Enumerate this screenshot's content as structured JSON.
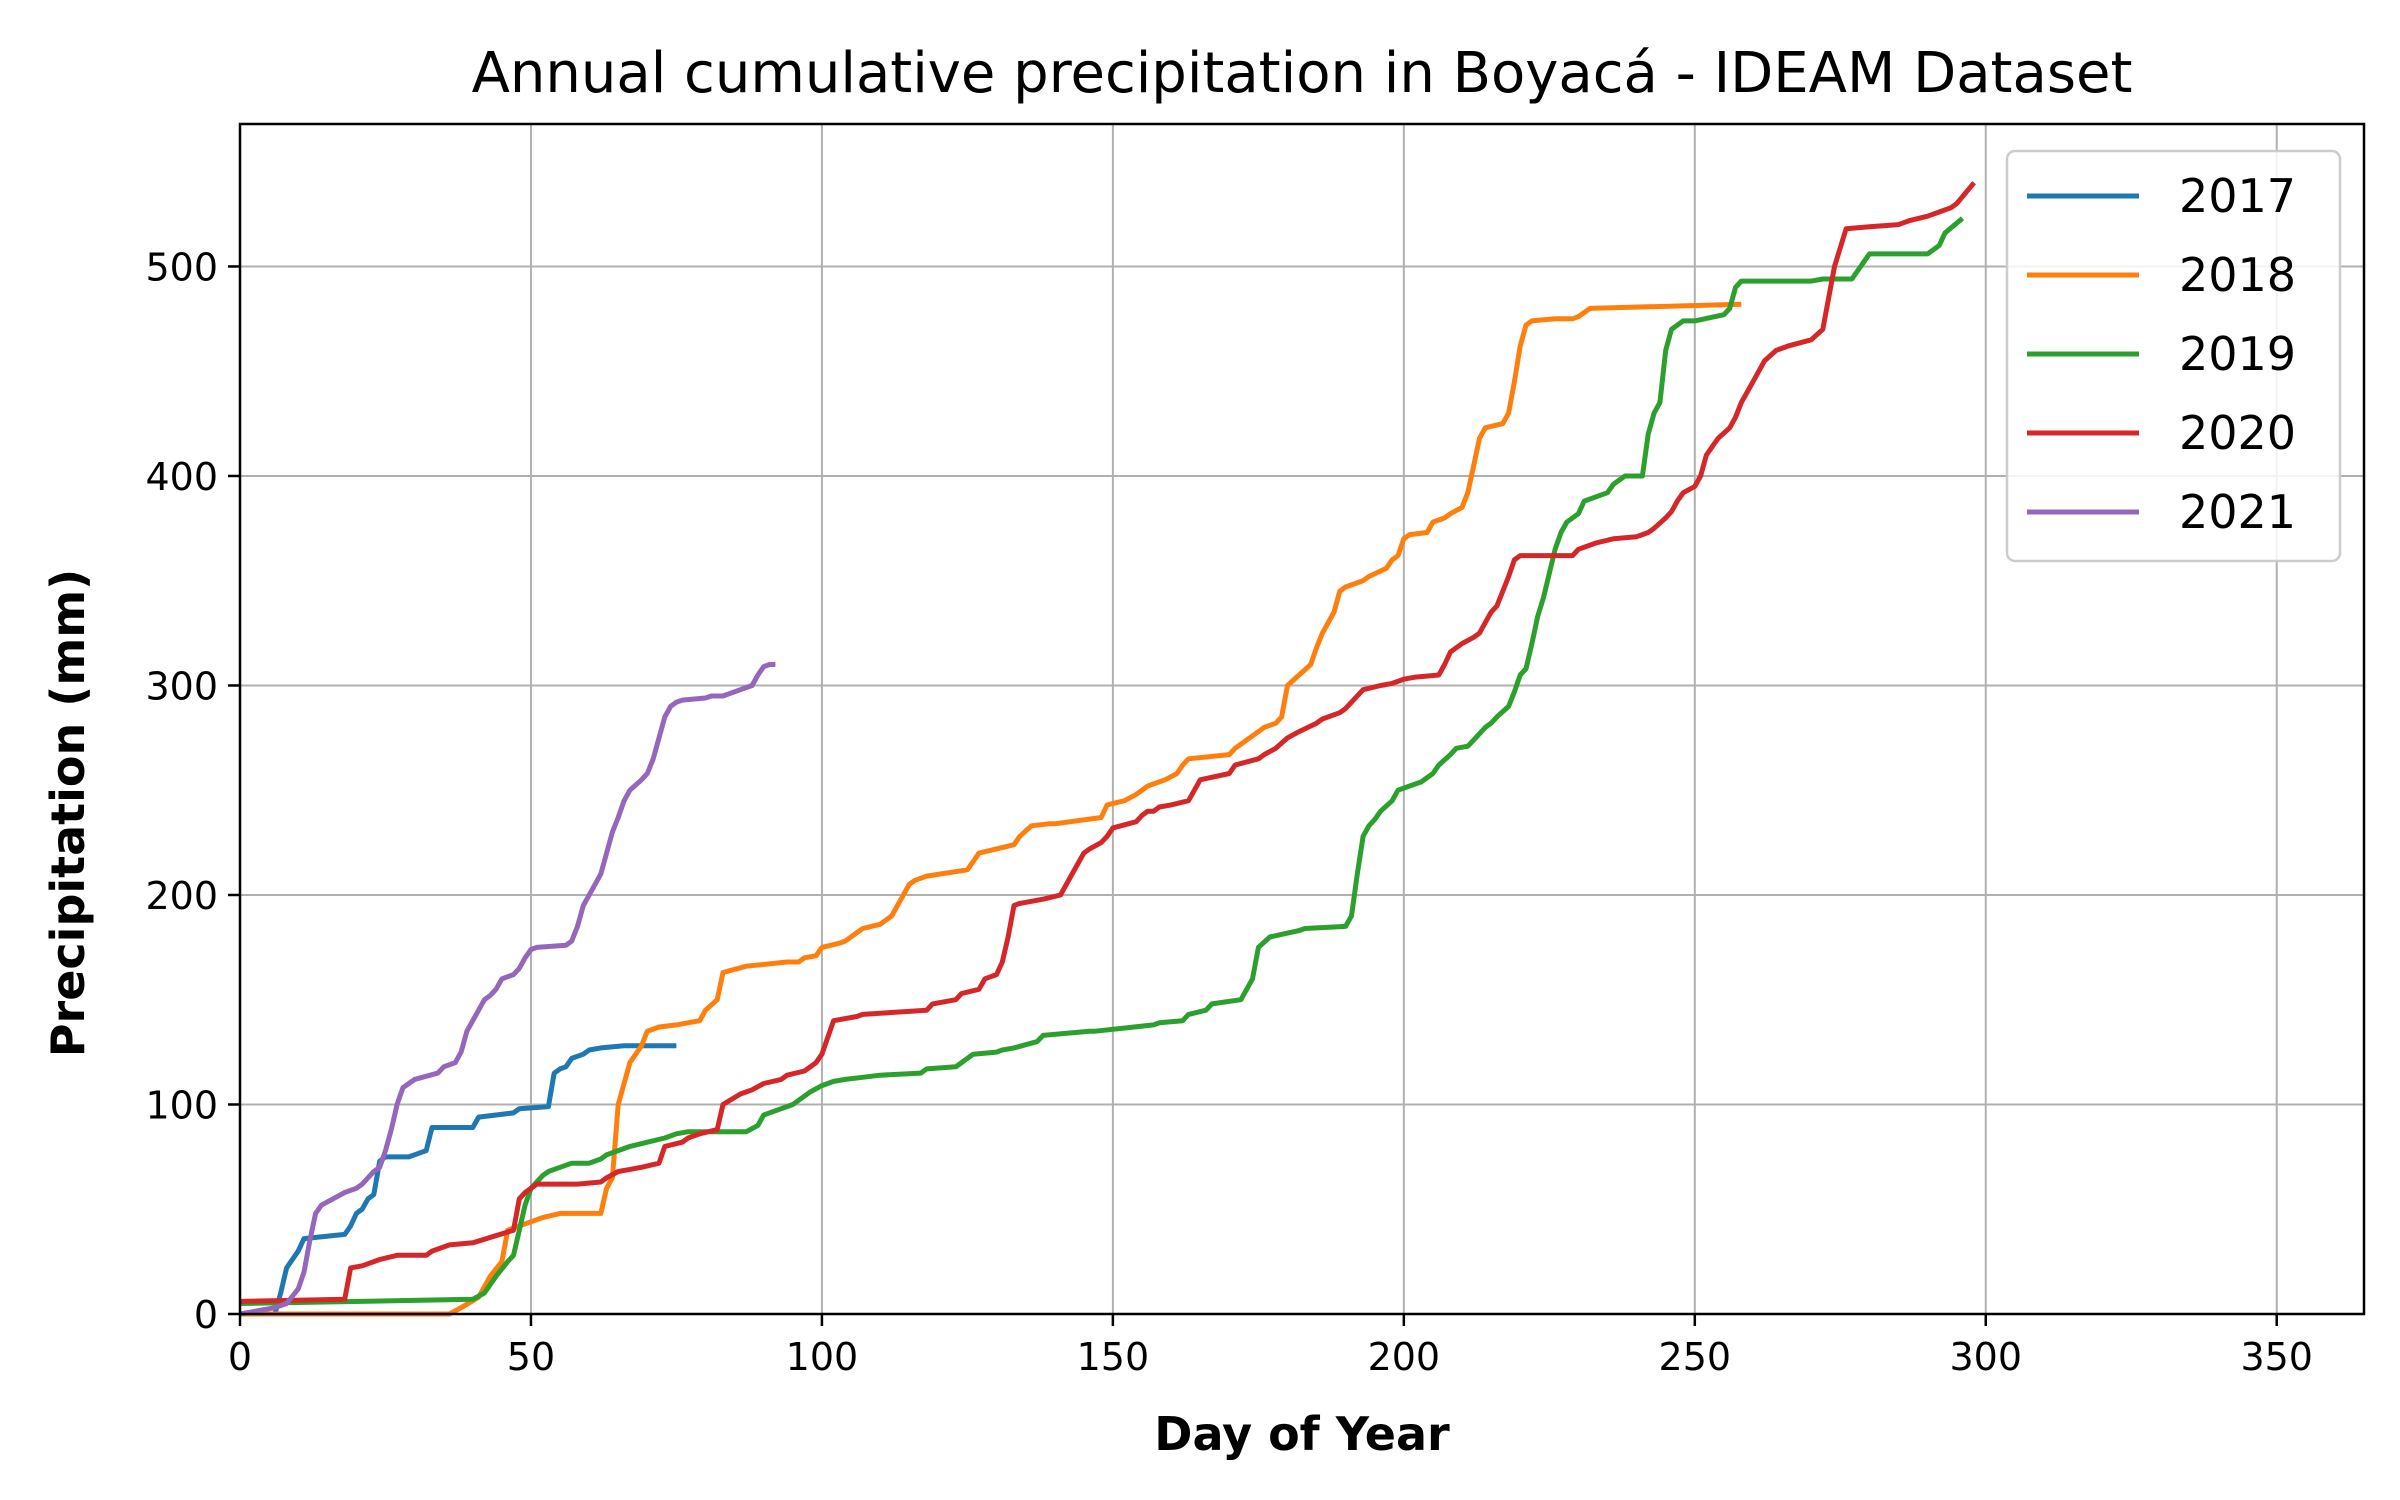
{
  "chart_data": {
    "type": "line",
    "title": "Annual cumulative precipitation in Boyacá - IDEAM Dataset",
    "xlabel": "Day of Year",
    "ylabel": "Precipitation (mm)",
    "xlim": [
      0,
      365
    ],
    "ylim": [
      0,
      568
    ],
    "x_ticks": [
      0,
      50,
      100,
      150,
      200,
      250,
      300,
      350
    ],
    "y_ticks": [
      0,
      100,
      200,
      300,
      400,
      500
    ],
    "grid": true,
    "legend_position": "top-right",
    "series": [
      {
        "name": "2017",
        "color": "#1f77b4",
        "x": [
          0,
          6,
          7,
          8,
          10,
          11,
          18,
          19,
          20,
          21,
          22,
          23,
          24,
          25,
          29,
          30,
          32,
          33,
          40,
          41,
          47,
          48,
          53,
          54,
          55,
          56,
          57,
          59,
          60,
          62,
          66,
          75
        ],
        "y": [
          0,
          0,
          10,
          22,
          30,
          36,
          38,
          42,
          48,
          50,
          55,
          57,
          73,
          75,
          75,
          76,
          78,
          89,
          89,
          94,
          96,
          98,
          99,
          115,
          117,
          118,
          122,
          124,
          126,
          127,
          128,
          128
        ]
      },
      {
        "name": "2018",
        "color": "#ff7f0e",
        "x": [
          0,
          36,
          38,
          41,
          43,
          45,
          46,
          51,
          52,
          55,
          62,
          63,
          64,
          65,
          66,
          67,
          69,
          70,
          71,
          72,
          75,
          79,
          80,
          82,
          83,
          87,
          94,
          96,
          97,
          99,
          100,
          103,
          104,
          105,
          106,
          107,
          110,
          111,
          112,
          115,
          116,
          117,
          118,
          125,
          127,
          130,
          133,
          134,
          136,
          139,
          140,
          148,
          149,
          152,
          154,
          156,
          157,
          159,
          161,
          162,
          163,
          170,
          171,
          175,
          176,
          178,
          179,
          180,
          182,
          184,
          185,
          186,
          188,
          189,
          190,
          193,
          194,
          197,
          198,
          199,
          200,
          201,
          204,
          205,
          207,
          208,
          210,
          211,
          212,
          213,
          214,
          217,
          218,
          219,
          220,
          221,
          222,
          226,
          229,
          230,
          232,
          258
        ],
        "y": [
          0,
          0,
          3,
          8,
          18,
          25,
          40,
          45,
          46,
          48,
          48,
          60,
          65,
          100,
          110,
          120,
          128,
          135,
          136,
          137,
          138,
          140,
          145,
          150,
          163,
          166,
          168,
          168,
          170,
          171,
          175,
          177,
          178,
          180,
          182,
          184,
          186,
          188,
          190,
          205,
          207,
          208,
          209,
          212,
          220,
          222,
          224,
          228,
          233,
          234,
          234,
          237,
          243,
          245,
          248,
          252,
          253,
          255,
          258,
          262,
          265,
          267,
          270,
          278,
          280,
          282,
          285,
          300,
          305,
          310,
          318,
          325,
          335,
          345,
          347,
          350,
          352,
          356,
          360,
          362,
          370,
          372,
          373,
          378,
          380,
          382,
          385,
          392,
          405,
          418,
          423,
          425,
          430,
          445,
          462,
          472,
          474,
          475,
          475,
          476,
          480,
          482
        ]
      },
      {
        "name": "2019",
        "color": "#2ca02c",
        "x": [
          0,
          40,
          42,
          44,
          46,
          47,
          48,
          49,
          50,
          51,
          52,
          53,
          55,
          57,
          58,
          60,
          62,
          63,
          65,
          67,
          70,
          73,
          75,
          77,
          79,
          87,
          89,
          90,
          93,
          94,
          95,
          98,
          100,
          102,
          104,
          107,
          110,
          117,
          118,
          123,
          125,
          126,
          130,
          131,
          133,
          137,
          138,
          146,
          147,
          157,
          158,
          162,
          163,
          166,
          167,
          172,
          173,
          174,
          175,
          177,
          182,
          183,
          190,
          191,
          192,
          193,
          194,
          195,
          196,
          198,
          199,
          201,
          203,
          204,
          205,
          206,
          208,
          209,
          211,
          212,
          214,
          215,
          216,
          218,
          219,
          220,
          221,
          222,
          223,
          224,
          226,
          227,
          228,
          229,
          230,
          231,
          235,
          236,
          237,
          238,
          239,
          241,
          242,
          243,
          244,
          245,
          246,
          247,
          248,
          249,
          250,
          255,
          256,
          257,
          258,
          262,
          264,
          270,
          272,
          277,
          280,
          290,
          292,
          293,
          296
        ],
        "y": [
          5,
          7,
          10,
          18,
          25,
          28,
          40,
          52,
          60,
          63,
          66,
          68,
          70,
          72,
          72,
          72,
          74,
          76,
          78,
          80,
          82,
          84,
          86,
          87,
          87,
          87,
          90,
          95,
          98,
          99,
          100,
          106,
          109,
          111,
          112,
          113,
          114,
          115,
          117,
          118,
          122,
          124,
          125,
          126,
          127,
          130,
          133,
          135,
          135,
          138,
          139,
          140,
          143,
          145,
          148,
          150,
          155,
          160,
          175,
          180,
          183,
          184,
          185,
          190,
          210,
          228,
          233,
          236,
          240,
          245,
          250,
          252,
          254,
          256,
          258,
          262,
          267,
          270,
          271,
          274,
          280,
          282,
          285,
          290,
          297,
          305,
          308,
          320,
          333,
          342,
          365,
          373,
          378,
          380,
          382,
          388,
          392,
          396,
          398,
          400,
          400,
          400,
          420,
          430,
          435,
          460,
          470,
          472,
          474,
          474,
          474,
          477,
          480,
          490,
          493,
          493,
          493,
          493,
          494,
          494,
          506,
          506,
          510,
          516,
          523
        ]
      },
      {
        "name": "2020",
        "color": "#d62728",
        "x": [
          0,
          18,
          19,
          21,
          24,
          27,
          32,
          33,
          36,
          40,
          47,
          48,
          49,
          50,
          51,
          58,
          62,
          63,
          65,
          67,
          69,
          72,
          73,
          76,
          77,
          79,
          82,
          83,
          86,
          87,
          88,
          90,
          93,
          94,
          97,
          98,
          99,
          100,
          102,
          106,
          107,
          118,
          119,
          123,
          124,
          127,
          128,
          130,
          131,
          132,
          133,
          134,
          138,
          141,
          142,
          143,
          145,
          146,
          148,
          149,
          150,
          154,
          155,
          156,
          157,
          158,
          160,
          163,
          165,
          170,
          171,
          175,
          176,
          178,
          180,
          182,
          185,
          186,
          189,
          190,
          193,
          196,
          198,
          200,
          202,
          206,
          207,
          208,
          210,
          212,
          213,
          214,
          215,
          216,
          217,
          218,
          219,
          220,
          229,
          230,
          233,
          236,
          240,
          241,
          242,
          243,
          245,
          246,
          247,
          248,
          250,
          251,
          252,
          254,
          256,
          257,
          258,
          260,
          261,
          262,
          264,
          266,
          270,
          272,
          274,
          276,
          280,
          285,
          287,
          290,
          292,
          294,
          295,
          298
        ],
        "y": [
          6,
          7,
          22,
          23,
          26,
          28,
          28,
          30,
          33,
          34,
          40,
          55,
          58,
          60,
          62,
          62,
          63,
          65,
          68,
          69,
          70,
          72,
          80,
          82,
          84,
          86,
          88,
          100,
          105,
          106,
          107,
          110,
          112,
          114,
          116,
          118,
          120,
          124,
          140,
          142,
          143,
          145,
          148,
          150,
          153,
          155,
          160,
          162,
          168,
          180,
          195,
          196,
          198,
          200,
          205,
          210,
          220,
          222,
          225,
          228,
          232,
          235,
          238,
          240,
          240,
          242,
          243,
          245,
          255,
          258,
          262,
          265,
          267,
          270,
          275,
          278,
          282,
          284,
          287,
          289,
          298,
          300,
          301,
          303,
          304,
          305,
          310,
          316,
          320,
          323,
          325,
          330,
          335,
          338,
          345,
          352,
          360,
          362,
          362,
          365,
          368,
          370,
          371,
          372,
          373,
          375,
          380,
          383,
          388,
          392,
          395,
          400,
          410,
          418,
          423,
          428,
          435,
          445,
          450,
          455,
          460,
          462,
          465,
          470,
          500,
          518,
          519,
          520,
          522,
          524,
          526,
          528,
          530,
          540
        ]
      },
      {
        "name": "2021",
        "color": "#9467bd",
        "x": [
          0,
          6,
          8,
          10,
          11,
          12,
          13,
          14,
          16,
          18,
          20,
          21,
          22,
          23,
          24,
          25,
          26,
          27,
          28,
          30,
          34,
          35,
          37,
          38,
          39,
          41,
          42,
          43,
          44,
          45,
          47,
          48,
          49,
          50,
          51,
          56,
          57,
          58,
          59,
          60,
          62,
          63,
          64,
          65,
          66,
          67,
          69,
          70,
          71,
          72,
          73,
          74,
          75,
          76,
          80,
          81,
          83,
          84,
          86,
          88,
          89,
          90,
          91,
          92
        ],
        "y": [
          0,
          3,
          5,
          12,
          20,
          35,
          48,
          52,
          55,
          58,
          60,
          62,
          65,
          68,
          70,
          78,
          88,
          100,
          108,
          112,
          115,
          118,
          120,
          125,
          135,
          145,
          150,
          152,
          155,
          160,
          162,
          165,
          170,
          174,
          175,
          176,
          178,
          185,
          195,
          200,
          210,
          220,
          230,
          237,
          245,
          250,
          255,
          258,
          265,
          275,
          285,
          290,
          292,
          293,
          294,
          295,
          295,
          296,
          298,
          300,
          305,
          309,
          310,
          310
        ]
      }
    ]
  }
}
